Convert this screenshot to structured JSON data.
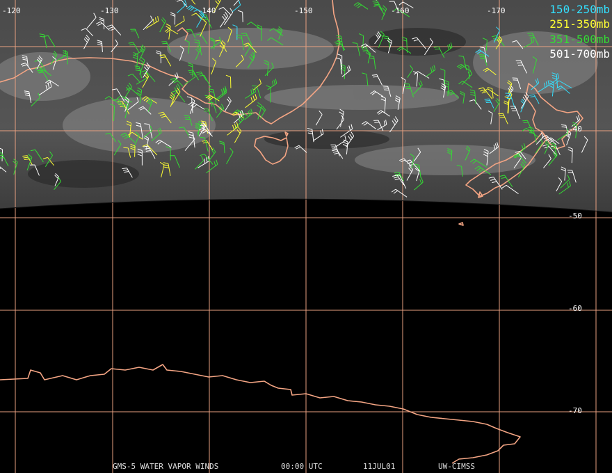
{
  "map": {
    "product": "GMS-5 WATER VAPOR WINDS",
    "time": "00:00 UTC",
    "date": "11JUL01",
    "credit": "UW-CIMSS",
    "longitude_labels": [
      "-120",
      "-130",
      "-140",
      "-150",
      "-160",
      "-170"
    ],
    "latitude_labels": [
      "-40",
      "-50",
      "-60",
      "-70"
    ],
    "grid_color": "#e8a080",
    "coast_color": "#f4a584"
  },
  "legend": [
    {
      "label": "150-250mb",
      "color": "#33e0ff"
    },
    {
      "label": "251-350mb",
      "color": "#ffff33"
    },
    {
      "label": "351-500mb",
      "color": "#33dd33"
    },
    {
      "label": "501-700mb",
      "color": "#ffffff"
    }
  ]
}
